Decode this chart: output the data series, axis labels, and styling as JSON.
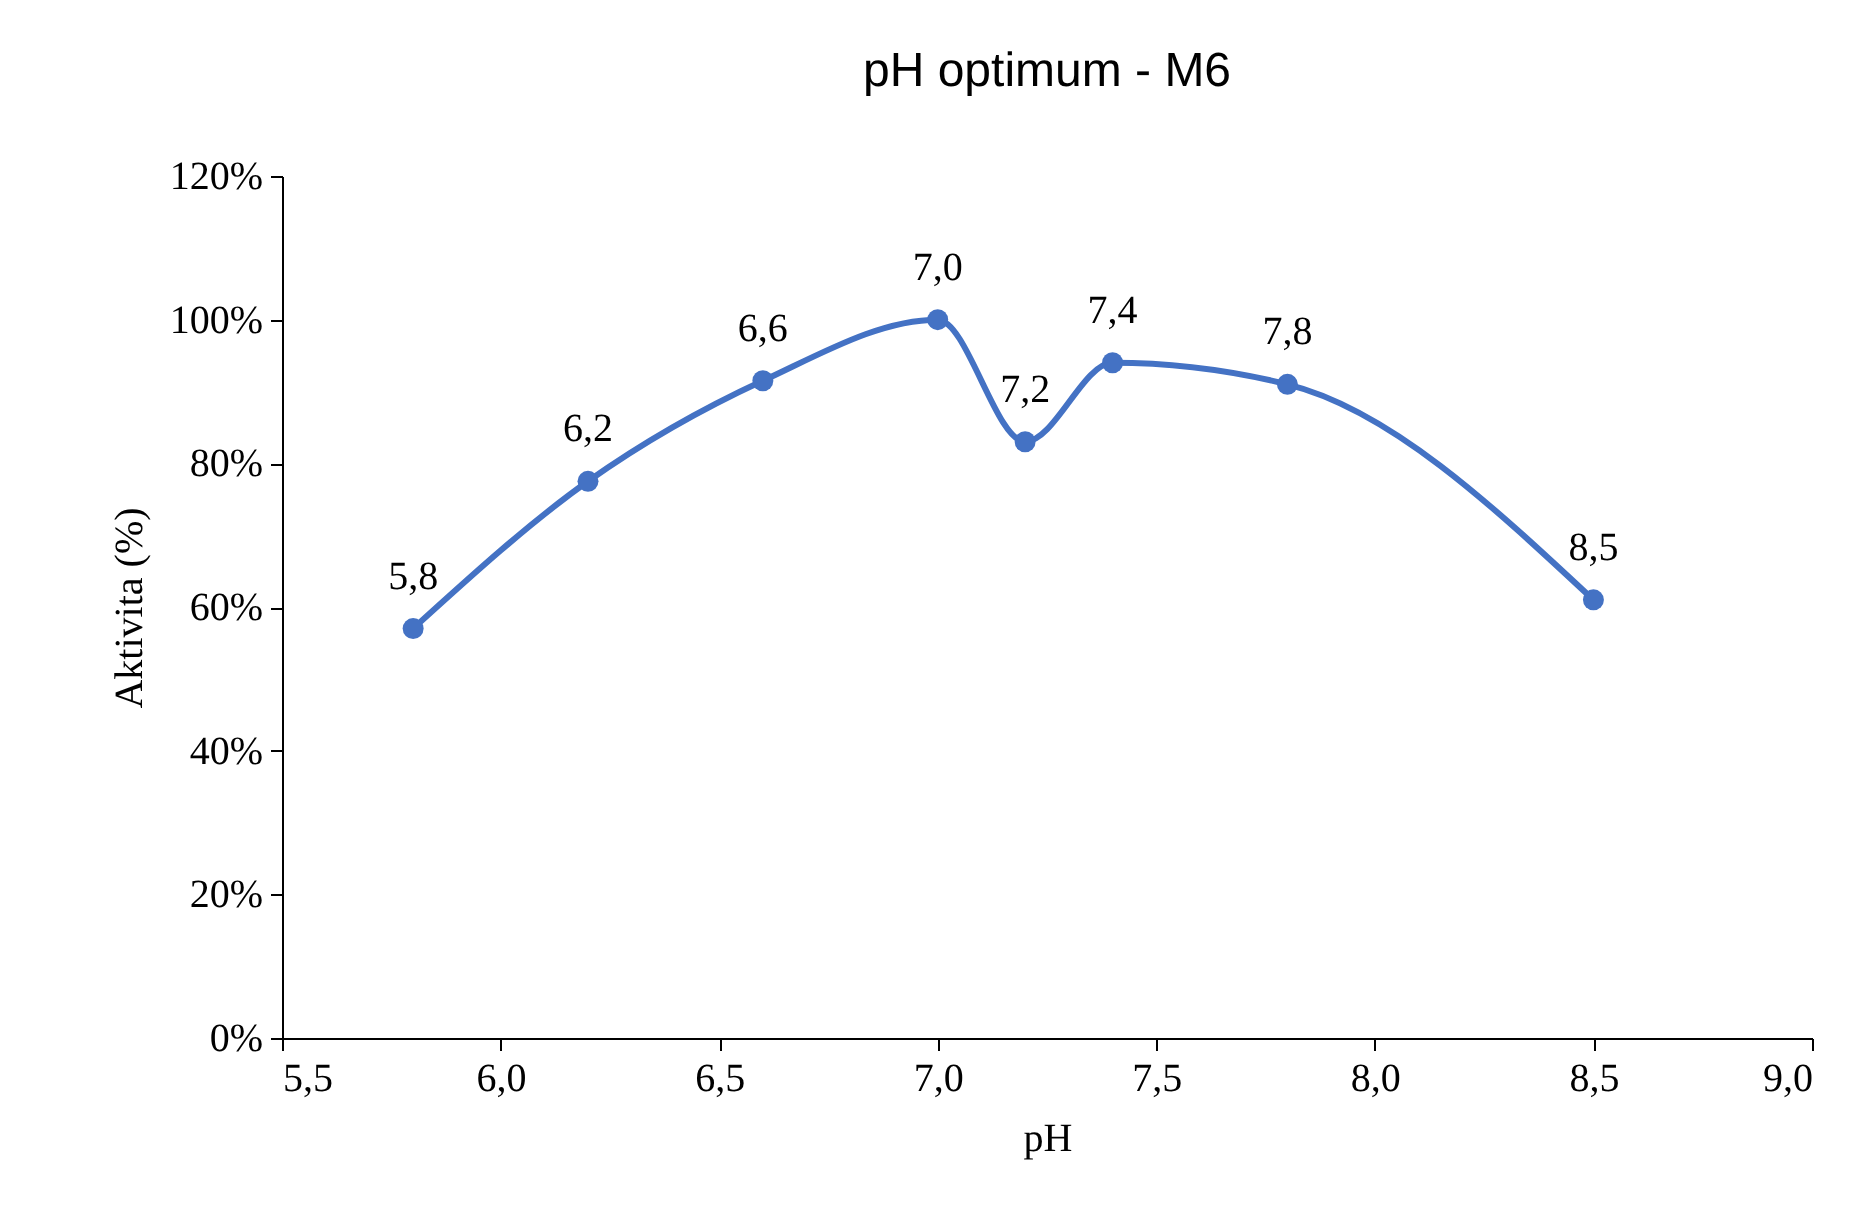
{
  "chart_data": {
    "type": "line",
    "title": "pH optimum - M6",
    "xlabel": "pH",
    "ylabel": "Aktivita (%)",
    "x": [
      5.8,
      6.2,
      6.6,
      7.0,
      7.2,
      7.4,
      7.8,
      8.5
    ],
    "series": [
      {
        "color": "#4472c4",
        "values": [
          57,
          77.5,
          91.5,
          100,
          83,
          94,
          91,
          61
        ]
      }
    ],
    "annotations": [
      {
        "text": "5,8",
        "x": 5.8,
        "y": 57
      },
      {
        "text": "6,2",
        "x": 6.2,
        "y": 77.5
      },
      {
        "text": "6,6",
        "x": 6.6,
        "y": 91.5
      },
      {
        "text": "7,0",
        "x": 7.0,
        "y": 100
      },
      {
        "text": "7,2",
        "x": 7.2,
        "y": 83
      },
      {
        "text": "7,4",
        "x": 7.4,
        "y": 94
      },
      {
        "text": "7,8",
        "x": 7.8,
        "y": 91
      },
      {
        "text": "8,5",
        "x": 8.5,
        "y": 61
      }
    ],
    "xlim": [
      5.5,
      9.0
    ],
    "xticks": [
      {
        "value": 5.5,
        "label": "5,5"
      },
      {
        "value": 6.0,
        "label": "6,0"
      },
      {
        "value": 6.5,
        "label": "6,5"
      },
      {
        "value": 7.0,
        "label": "7,0"
      },
      {
        "value": 7.5,
        "label": "7,5"
      },
      {
        "value": 8.0,
        "label": "8,0"
      },
      {
        "value": 8.5,
        "label": "8,5"
      },
      {
        "value": 9.0,
        "label": "9,0"
      }
    ],
    "ylim": [
      0,
      120
    ],
    "yticks": [
      {
        "value": 0,
        "label": "0%"
      },
      {
        "value": 20,
        "label": "20%"
      },
      {
        "value": 40,
        "label": "40%"
      },
      {
        "value": 60,
        "label": "60%"
      },
      {
        "value": 80,
        "label": "80%"
      },
      {
        "value": 100,
        "label": "100%"
      },
      {
        "value": 120,
        "label": "120%"
      }
    ],
    "grid": false,
    "marker": "circle",
    "line_style": "solid"
  }
}
